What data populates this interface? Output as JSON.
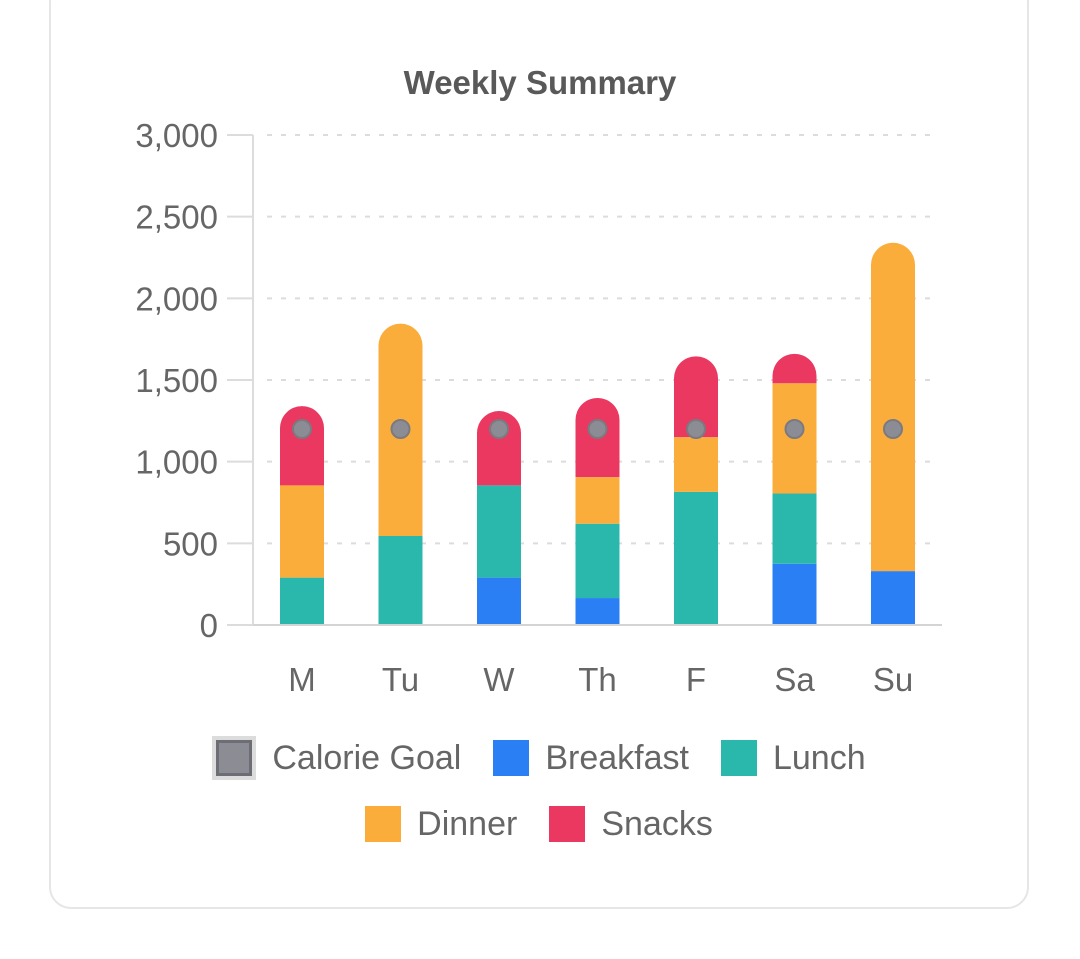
{
  "chart_data": {
    "type": "bar",
    "stacked": true,
    "title": "Weekly Summary",
    "categories": [
      "M",
      "Tu",
      "W",
      "Th",
      "F",
      "Sa",
      "Su"
    ],
    "ylim": [
      0,
      3000
    ],
    "yticks": [
      0,
      500,
      1000,
      1500,
      2000,
      2500,
      3000
    ],
    "ytick_labels": [
      "0",
      "500",
      "1,000",
      "1,500",
      "2,000",
      "2,500",
      "3,000"
    ],
    "grid": true,
    "series": [
      {
        "name": "Breakfast",
        "color": "#2b7ff5",
        "values": [
          0,
          0,
          290,
          165,
          0,
          375,
          330
        ]
      },
      {
        "name": "Lunch",
        "color": "#2bb8ac",
        "values": [
          290,
          545,
          565,
          455,
          815,
          430,
          0
        ]
      },
      {
        "name": "Dinner",
        "color": "#fbad3c",
        "values": [
          565,
          1300,
          0,
          285,
          335,
          675,
          2010
        ]
      },
      {
        "name": "Snacks",
        "color": "#ea3860",
        "values": [
          485,
          0,
          455,
          485,
          495,
          180,
          0
        ]
      }
    ],
    "goal": {
      "name": "Calorie Goal",
      "color": "#8c8c94",
      "values": [
        1200,
        1200,
        1200,
        1200,
        1200,
        1200,
        1200
      ]
    },
    "legend_position": "bottom"
  }
}
